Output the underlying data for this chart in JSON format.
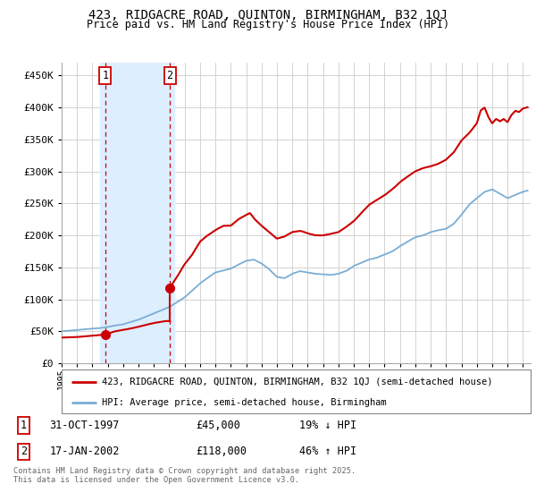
{
  "title": "423, RIDGACRE ROAD, QUINTON, BIRMINGHAM, B32 1QJ",
  "subtitle": "Price paid vs. HM Land Registry's House Price Index (HPI)",
  "background_color": "#ffffff",
  "grid_color": "#cccccc",
  "sale1_date": "31-OCT-1997",
  "sale1_price": 45000,
  "sale1_hpi_note": "19% ↓ HPI",
  "sale2_date": "17-JAN-2002",
  "sale2_price": 118000,
  "sale2_hpi_note": "46% ↑ HPI",
  "legend_line1": "423, RIDGACRE ROAD, QUINTON, BIRMINGHAM, B32 1QJ (semi-detached house)",
  "legend_line2": "HPI: Average price, semi-detached house, Birmingham",
  "footer": "Contains HM Land Registry data © Crown copyright and database right 2025.\nThis data is licensed under the Open Government Licence v3.0.",
  "sale1_x": 1997.83,
  "sale2_x": 2002.04,
  "highlight_x1_start": 1997.5,
  "highlight_x1_end": 2002.3,
  "hpi_color": "#7aadd4",
  "price_color": "#cc0000",
  "sale_marker_color": "#cc0000",
  "highlight_color": "#ddeeff",
  "vline_color": "#cc0000",
  "xlim_min": 1995.0,
  "xlim_max": 2025.5,
  "ylim_min": 0,
  "ylim_max": 470000,
  "hpi_anchors": [
    [
      1995.0,
      50000
    ],
    [
      1996.0,
      52000
    ],
    [
      1997.0,
      54000
    ],
    [
      1997.5,
      55000
    ],
    [
      1998.0,
      57000
    ],
    [
      1999.0,
      61000
    ],
    [
      2000.0,
      68000
    ],
    [
      2001.0,
      78000
    ],
    [
      2002.0,
      88000
    ],
    [
      2003.0,
      103000
    ],
    [
      2004.0,
      125000
    ],
    [
      2005.0,
      142000
    ],
    [
      2006.0,
      148000
    ],
    [
      2006.5,
      154000
    ],
    [
      2007.0,
      160000
    ],
    [
      2007.5,
      162000
    ],
    [
      2008.0,
      156000
    ],
    [
      2008.5,
      147000
    ],
    [
      2009.0,
      135000
    ],
    [
      2009.5,
      133000
    ],
    [
      2010.0,
      140000
    ],
    [
      2010.5,
      144000
    ],
    [
      2011.0,
      142000
    ],
    [
      2011.5,
      140000
    ],
    [
      2012.0,
      139000
    ],
    [
      2012.5,
      138000
    ],
    [
      2013.0,
      140000
    ],
    [
      2013.5,
      144000
    ],
    [
      2014.0,
      152000
    ],
    [
      2014.5,
      157000
    ],
    [
      2015.0,
      162000
    ],
    [
      2015.5,
      165000
    ],
    [
      2016.0,
      170000
    ],
    [
      2016.5,
      175000
    ],
    [
      2017.0,
      183000
    ],
    [
      2017.5,
      190000
    ],
    [
      2018.0,
      197000
    ],
    [
      2018.5,
      200000
    ],
    [
      2019.0,
      205000
    ],
    [
      2019.5,
      208000
    ],
    [
      2020.0,
      210000
    ],
    [
      2020.5,
      218000
    ],
    [
      2021.0,
      232000
    ],
    [
      2021.5,
      248000
    ],
    [
      2022.0,
      258000
    ],
    [
      2022.5,
      268000
    ],
    [
      2023.0,
      272000
    ],
    [
      2023.5,
      265000
    ],
    [
      2024.0,
      258000
    ],
    [
      2024.5,
      263000
    ],
    [
      2025.0,
      268000
    ],
    [
      2025.3,
      270000
    ]
  ],
  "price_anchors_pre_sale1": [
    [
      1995.0,
      40000
    ],
    [
      1996.0,
      41000
    ],
    [
      1997.0,
      43000
    ],
    [
      1997.83,
      45000
    ]
  ],
  "price_anchors_between": [
    [
      1997.83,
      45000
    ],
    [
      1998.5,
      50000
    ],
    [
      1999.0,
      52000
    ],
    [
      2000.0,
      57000
    ],
    [
      2001.0,
      63000
    ],
    [
      2001.8,
      66000
    ],
    [
      2002.04,
      66000
    ]
  ],
  "price_anchors_post_sale2": [
    [
      2002.04,
      118000
    ],
    [
      2002.5,
      135000
    ],
    [
      2003.0,
      155000
    ],
    [
      2003.5,
      170000
    ],
    [
      2004.0,
      190000
    ],
    [
      2004.5,
      200000
    ],
    [
      2005.0,
      208000
    ],
    [
      2005.5,
      215000
    ],
    [
      2006.0,
      215000
    ],
    [
      2006.5,
      225000
    ],
    [
      2007.0,
      232000
    ],
    [
      2007.25,
      235000
    ],
    [
      2007.5,
      227000
    ],
    [
      2008.0,
      215000
    ],
    [
      2008.5,
      205000
    ],
    [
      2009.0,
      195000
    ],
    [
      2009.5,
      198000
    ],
    [
      2010.0,
      205000
    ],
    [
      2010.5,
      207000
    ],
    [
      2011.0,
      203000
    ],
    [
      2011.5,
      200000
    ],
    [
      2012.0,
      200000
    ],
    [
      2012.5,
      202000
    ],
    [
      2013.0,
      205000
    ],
    [
      2013.5,
      213000
    ],
    [
      2014.0,
      222000
    ],
    [
      2014.5,
      235000
    ],
    [
      2015.0,
      248000
    ],
    [
      2015.5,
      255000
    ],
    [
      2016.0,
      263000
    ],
    [
      2016.5,
      272000
    ],
    [
      2017.0,
      283000
    ],
    [
      2017.5,
      292000
    ],
    [
      2018.0,
      300000
    ],
    [
      2018.5,
      305000
    ],
    [
      2019.0,
      308000
    ],
    [
      2019.5,
      312000
    ],
    [
      2020.0,
      318000
    ],
    [
      2020.5,
      330000
    ],
    [
      2021.0,
      348000
    ],
    [
      2021.5,
      360000
    ],
    [
      2022.0,
      375000
    ],
    [
      2022.25,
      395000
    ],
    [
      2022.5,
      400000
    ],
    [
      2022.75,
      385000
    ],
    [
      2023.0,
      375000
    ],
    [
      2023.25,
      382000
    ],
    [
      2023.5,
      378000
    ],
    [
      2023.75,
      382000
    ],
    [
      2024.0,
      377000
    ],
    [
      2024.25,
      388000
    ],
    [
      2024.5,
      395000
    ],
    [
      2024.75,
      393000
    ],
    [
      2025.0,
      398000
    ],
    [
      2025.3,
      400000
    ]
  ]
}
